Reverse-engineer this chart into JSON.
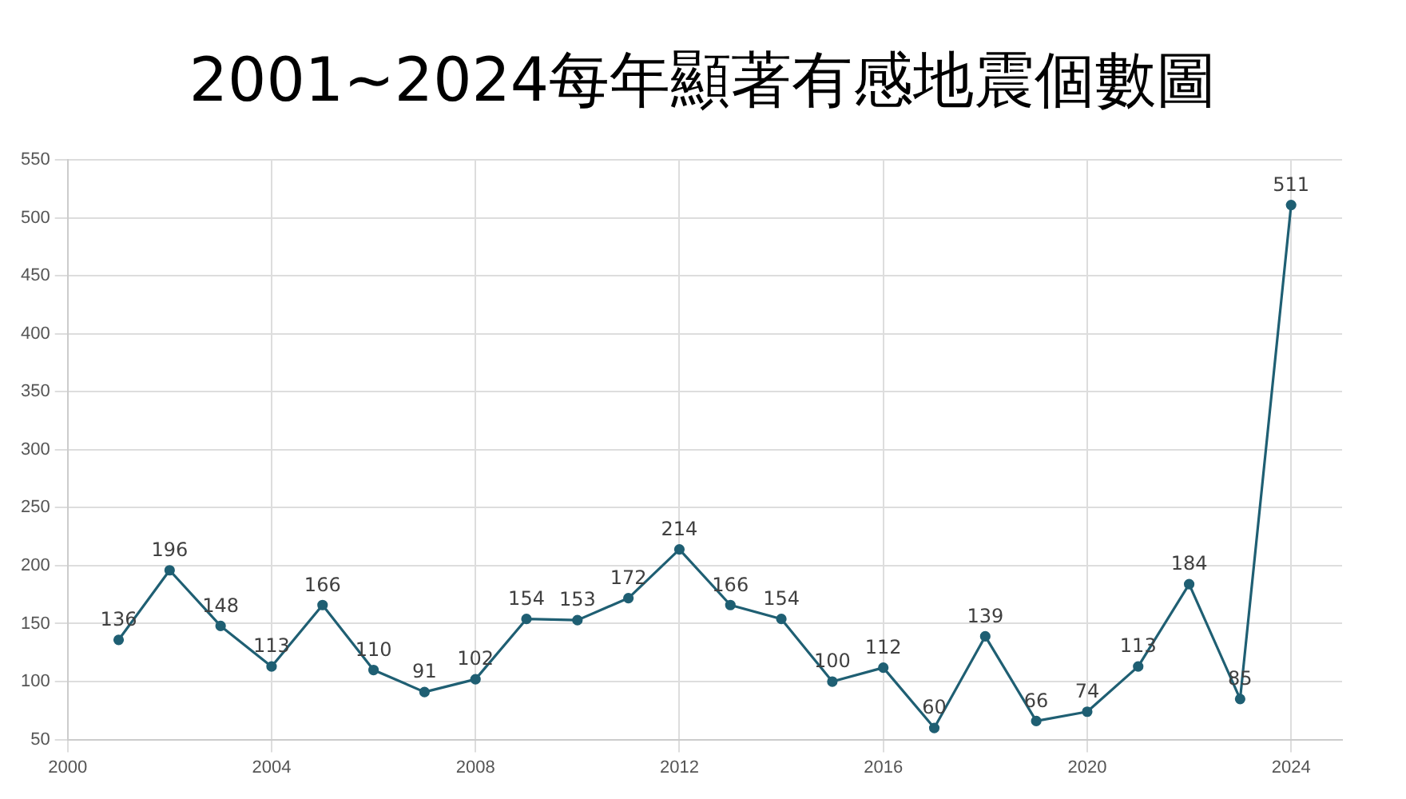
{
  "chart_data": {
    "type": "line",
    "title": "2001~2024每年顯著有感地震個數圖",
    "x": [
      2001,
      2002,
      2003,
      2004,
      2005,
      2006,
      2007,
      2008,
      2009,
      2010,
      2011,
      2012,
      2013,
      2014,
      2015,
      2016,
      2017,
      2018,
      2019,
      2020,
      2021,
      2022,
      2023,
      2024
    ],
    "series": [
      {
        "color": "#1f5f73",
        "values": [
          136,
          196,
          148,
          113,
          166,
          110,
          91,
          102,
          154,
          153,
          172,
          214,
          166,
          154,
          100,
          112,
          60,
          139,
          66,
          74,
          113,
          184,
          85,
          511
        ]
      }
    ],
    "xlim": [
      2000,
      2025
    ],
    "xticks": [
      2000,
      2004,
      2008,
      2012,
      2016,
      2020,
      2024
    ],
    "ylim": [
      50,
      550
    ],
    "yticks": [
      50,
      100,
      150,
      200,
      250,
      300,
      350,
      400,
      450,
      500,
      550
    ],
    "grid": true,
    "legend": false,
    "marker": "circle",
    "line_style": "solid",
    "data_labels": true
  }
}
